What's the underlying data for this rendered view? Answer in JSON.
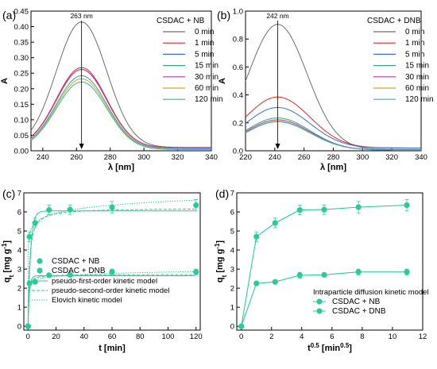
{
  "chart_data": [
    {
      "panel": "(a)",
      "type": "line",
      "xlabel_text": "λ [nm]",
      "ylabel_text": "A",
      "xlim": [
        233,
        340
      ],
      "ylim": [
        0,
        0.45
      ],
      "xticks": [
        240,
        260,
        280,
        300,
        320,
        340
      ],
      "yticks": [
        0.0,
        0.05,
        0.1,
        0.15,
        0.2,
        0.25,
        0.3,
        0.35,
        0.4,
        0.45
      ],
      "legend_title": "CSDAC + NB",
      "legend_position": "top-right",
      "annotation": "263 nm",
      "peak_x": 263,
      "series": [
        {
          "name": "0 min",
          "color": "#6d6d6d",
          "peak": 0.415,
          "width": 15,
          "baseline": 0.011
        },
        {
          "name": "1 min",
          "color": "#e0282d",
          "peak": 0.268,
          "width": 15,
          "baseline": 0.01
        },
        {
          "name": "5 min",
          "color": "#3b6fc6",
          "peak": 0.262,
          "width": 15,
          "baseline": 0.01
        },
        {
          "name": "15 min",
          "color": "#3aa37a",
          "peak": 0.242,
          "width": 15,
          "baseline": 0.007
        },
        {
          "name": "30 min",
          "color": "#b238b0",
          "peak": 0.262,
          "width": 15,
          "baseline": 0.01
        },
        {
          "name": "60 min",
          "color": "#c9a81c",
          "peak": 0.232,
          "width": 15,
          "baseline": 0.006
        },
        {
          "name": "120 min",
          "color": "#36a9d8",
          "peak": 0.222,
          "width": 15,
          "baseline": 0.004
        }
      ]
    },
    {
      "panel": "(b)",
      "type": "line",
      "xlabel_text": "λ [nm]",
      "ylabel_text": "A",
      "xlim": [
        220,
        340
      ],
      "ylim": [
        0,
        1.0
      ],
      "xticks": [
        220,
        240,
        260,
        280,
        300,
        320,
        340
      ],
      "yticks": [
        0.0,
        0.2,
        0.4,
        0.6,
        0.8,
        1.0
      ],
      "legend_title": "CSDAC + DNB",
      "legend_position": "top-right",
      "annotation": "242 nm",
      "peak_x": 242,
      "series": [
        {
          "name": "0 min",
          "color": "#6d6d6d",
          "peak": 0.905,
          "width": 20,
          "baseline": 0.01
        },
        {
          "name": "1 min",
          "color": "#e0282d",
          "peak": 0.385,
          "width": 22,
          "baseline": 0.02
        },
        {
          "name": "5 min",
          "color": "#3b6fc6",
          "peak": 0.31,
          "width": 22,
          "baseline": 0.02
        },
        {
          "name": "15 min",
          "color": "#3aa37a",
          "peak": 0.235,
          "width": 22,
          "baseline": 0.005
        },
        {
          "name": "30 min",
          "color": "#b238b0",
          "peak": 0.222,
          "width": 22,
          "baseline": 0.005
        },
        {
          "name": "60 min",
          "color": "#c9a81c",
          "peak": 0.212,
          "width": 22,
          "baseline": 0.005
        },
        {
          "name": "120 min",
          "color": "#36a9d8",
          "peak": 0.208,
          "width": 22,
          "baseline": 0.005
        }
      ]
    },
    {
      "panel": "(c)",
      "type": "scatter",
      "xlabel_text": "t [min]",
      "ylabel_text": "qt [mg g-1]",
      "xlim": [
        -3,
        123
      ],
      "ylim": [
        -0.2,
        7
      ],
      "xticks": [
        0,
        20,
        40,
        60,
        80,
        100,
        120
      ],
      "yticks": [
        0,
        1,
        2,
        3,
        4,
        5,
        6,
        7
      ],
      "legend_position": "center-left",
      "legend_entries": [
        "CSDAC + NB",
        "CSDAC + DNB",
        "pseudo-first-order kinetic model",
        "pseudo-second-order kinetic model",
        "Elovich kinetic model"
      ],
      "marker_color": "#2ec99a",
      "series": [
        {
          "name": "CSDAC + NB",
          "x": [
            0,
            1,
            5,
            15,
            30,
            60,
            120
          ],
          "y": [
            0,
            2.25,
            2.33,
            2.68,
            2.7,
            2.85,
            2.85
          ],
          "err": [
            0,
            0.1,
            0.1,
            0.1,
            0.1,
            0.15,
            0.15
          ]
        },
        {
          "name": "CSDAC + DNB",
          "x": [
            0,
            1,
            5,
            15,
            30,
            60,
            120
          ],
          "y": [
            0,
            4.7,
            5.42,
            6.1,
            6.12,
            6.25,
            6.35
          ],
          "err": [
            0,
            0.25,
            0.25,
            0.25,
            0.25,
            0.3,
            0.3
          ]
        }
      ],
      "models": {
        "NB": {
          "qe1": 2.65,
          "k1": 1.0,
          "qe2": 2.72,
          "k2": 0.9,
          "ea": 2.2,
          "eb": 0.14
        },
        "DNB": {
          "qe1": 6.05,
          "k1": 0.55,
          "qe2": 6.2,
          "k2": 0.16,
          "ea": 4.8,
          "eb": 0.38
        }
      }
    },
    {
      "panel": "(d)",
      "type": "scatter",
      "xlabel_text": "t0.5 [min0.5]",
      "ylabel_text": "qt [mg g-1]",
      "xlim": [
        -0.3,
        12
      ],
      "ylim": [
        -0.2,
        7
      ],
      "xticks": [
        0,
        2,
        4,
        6,
        8,
        10,
        12
      ],
      "yticks": [
        0,
        1,
        2,
        3,
        4,
        5,
        6,
        7
      ],
      "legend_title": "Intraparticle diffusion kinetic model",
      "legend_position": "bottom-right",
      "marker_color": "#2ec99a",
      "series": [
        {
          "name": "CSDAC + NB",
          "x": [
            0,
            1,
            2.24,
            3.87,
            5.48,
            7.75,
            10.95
          ],
          "y": [
            0,
            2.25,
            2.33,
            2.68,
            2.7,
            2.85,
            2.85
          ],
          "err": [
            0,
            0.1,
            0.1,
            0.15,
            0.1,
            0.15,
            0.15
          ]
        },
        {
          "name": "CSDAC + DNB",
          "x": [
            0,
            1,
            2.24,
            3.87,
            5.48,
            7.75,
            10.95
          ],
          "y": [
            0,
            4.7,
            5.42,
            6.1,
            6.12,
            6.25,
            6.35
          ],
          "err": [
            0,
            0.25,
            0.25,
            0.25,
            0.25,
            0.3,
            0.3
          ]
        }
      ]
    }
  ]
}
